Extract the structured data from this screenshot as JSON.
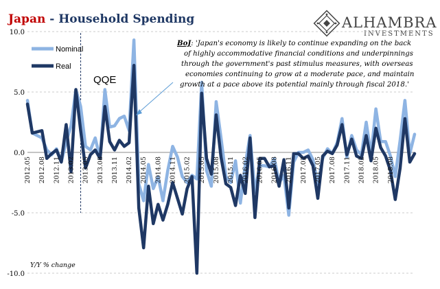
{
  "chart_data": {
    "type": "line",
    "title_part1": "Japan",
    "title_sep": " - ",
    "title_part2": "Household Spending",
    "ylabel": "Y/Y % change",
    "ylim": [
      -10,
      10
    ],
    "yticks": [
      "10.0",
      "5.0",
      "0.0",
      "-5.0",
      "-10.0"
    ],
    "ytick_values": [
      10,
      5,
      0,
      -5,
      -10
    ],
    "x_tick_labels": [
      "2012.05",
      "2012.08",
      "2012.11",
      "2013.02",
      "2013.05",
      "2013.08",
      "2013.11",
      "2014.02",
      "2014.05",
      "2014.08",
      "2014.11",
      "2015.02",
      "2015.05",
      "2015.08",
      "2015.11",
      "2016.02",
      "2016.05",
      "2016.08",
      "2016.11",
      "2017.02",
      "2017.05",
      "2017.08",
      "2017.11",
      "2018.02",
      "2018.05",
      "2018.08"
    ],
    "x_start": "2012.05",
    "x_end": "2018.11",
    "series": [
      {
        "name": "Nominal",
        "color": "#8eb4e3",
        "values": [
          4.3,
          1.6,
          1.4,
          1.2,
          0.2,
          -0.2,
          0.3,
          -0.8,
          0.9,
          2.2,
          5.2,
          3.8,
          0.5,
          0.2,
          1.2,
          -0.5,
          5.2,
          2.1,
          2.2,
          2.8,
          3.0,
          1.8,
          9.3,
          -2.6,
          -4.0,
          -1.0,
          -3.0,
          -2.0,
          -4.0,
          -1.5,
          0.5,
          -0.4,
          -2.0,
          -2.5,
          -1.9,
          -2.2,
          5.8,
          -1.5,
          -2.8,
          4.2,
          1.2,
          -2.0,
          -2.5,
          -0.7,
          -4.2,
          -1.0,
          1.4,
          -3.3,
          -1.1,
          -1.1,
          -1.2,
          -0.5,
          -2.5,
          -1.9,
          -5.2,
          -0.8,
          0.0,
          0.0,
          0.2,
          -0.6,
          -2.6,
          -0.5,
          0.3,
          -0.1,
          0.8,
          2.8,
          -0.4,
          1.4,
          0.2,
          -0.2,
          2.5,
          -0.2,
          3.6,
          0.9,
          0.9,
          -0.3,
          -2.0,
          1.0,
          4.3,
          -0.1,
          1.5
        ],
        "x_positions": [
          0,
          1,
          2,
          3,
          4,
          5,
          6,
          7,
          8,
          9,
          10,
          11,
          12,
          13,
          14,
          15,
          16,
          17,
          18,
          19,
          20,
          21,
          22,
          23,
          24,
          25,
          26,
          27,
          28,
          29,
          30,
          31,
          32,
          33,
          34,
          35,
          36,
          37,
          38,
          39,
          40,
          41,
          42,
          43,
          44,
          45,
          46,
          47,
          48,
          49,
          50,
          51,
          52,
          53,
          54,
          55,
          56,
          57,
          58,
          59,
          60,
          61,
          62,
          63,
          64,
          65,
          66,
          67,
          68,
          69,
          70,
          71,
          72,
          73,
          74,
          75,
          76,
          77,
          78,
          79,
          80
        ]
      },
      {
        "name": "Real",
        "color": "#1f3864",
        "values": [
          4.0,
          1.6,
          1.7,
          1.8,
          -0.5,
          -0.1,
          0.2,
          -0.8,
          2.3,
          -1.6,
          5.2,
          1.8,
          -1.3,
          -0.2,
          0.2,
          -0.5,
          3.8,
          0.9,
          0.2,
          1.0,
          0.5,
          0.8,
          7.2,
          -4.6,
          -7.9,
          -2.8,
          -5.9,
          -4.3,
          -5.6,
          -4.3,
          -2.5,
          -3.8,
          -5.1,
          -3.0,
          -2.0,
          -10.0,
          4.9,
          -0.5,
          -1.8,
          3.1,
          -0.4,
          -2.6,
          -2.9,
          -4.4,
          -1.9,
          -3.4,
          1.2,
          -5.4,
          -0.5,
          -0.5,
          -1.2,
          -1.1,
          -2.8,
          -0.6,
          -4.6,
          -0.1,
          -0.1,
          -0.5,
          -0.3,
          -1.1,
          -3.8,
          -0.3,
          0.1,
          -0.1,
          0.6,
          2.3,
          -0.2,
          1.1,
          -0.3,
          -0.5,
          1.4,
          -0.7,
          2.0,
          0.4,
          -0.3,
          -1.5,
          -3.9,
          -1.3,
          2.8,
          -0.8,
          -0.1
        ],
        "x_positions": [
          0,
          1,
          2,
          3,
          4,
          5,
          6,
          7,
          8,
          9,
          10,
          11,
          12,
          13,
          14,
          15,
          16,
          17,
          18,
          19,
          20,
          21,
          22,
          23,
          24,
          25,
          26,
          27,
          28,
          29,
          30,
          31,
          32,
          33,
          34,
          35,
          36,
          37,
          38,
          39,
          40,
          41,
          42,
          43,
          44,
          45,
          46,
          47,
          48,
          49,
          50,
          51,
          52,
          53,
          54,
          55,
          56,
          57,
          58,
          59,
          60,
          61,
          62,
          63,
          64,
          65,
          66,
          67,
          68,
          69,
          70,
          71,
          72,
          73,
          74,
          75,
          76,
          77,
          78,
          79,
          80
        ]
      }
    ],
    "legend": {
      "placement": "top-left",
      "entries": [
        {
          "label": "Nominal",
          "color": "#8eb4e3"
        },
        {
          "label": "Real",
          "color": "#1f3864"
        }
      ]
    },
    "annotations": {
      "qqe_label": "QQE",
      "qqe_at": "2013.04",
      "quote_source": "BoJ",
      "quote_lines": [
        ":  'Japan's economy is likely to continue expanding on the back",
        "of highly accommodative financial conditions and underpinnings",
        "through the government's past stimulus measures, with overseas",
        "economies continuing to grow at a moderate pace, and maintain",
        "growth at a pace above its potential mainly through fiscal 2018.'"
      ]
    },
    "grid": "horizontal dashed at major ticks"
  },
  "logo": {
    "name": "ALHAMBRA",
    "sub": "INVESTMENTS"
  }
}
